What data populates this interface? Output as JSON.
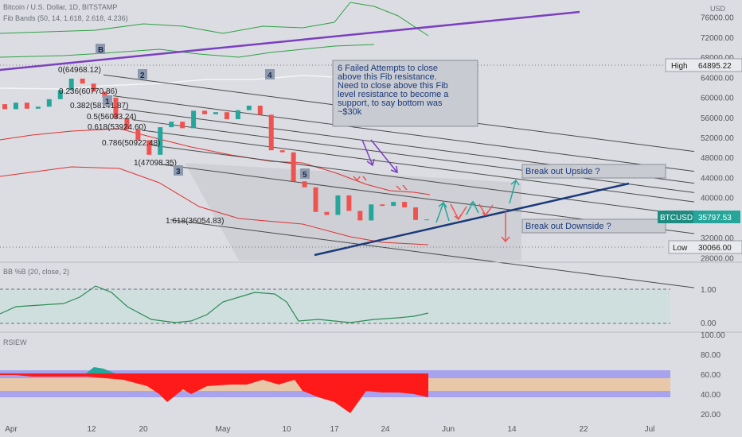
{
  "header": {
    "title": "Bitcoin / U.S. Dollar, 1D, BITSTAMP",
    "indicator": "Fib Bands (50, 14, 1.618, 2.618, 4.236)"
  },
  "currency": "USD",
  "colors": {
    "background": "#dcdde3",
    "up": "#26a69a",
    "down": "#ef5350",
    "trendline": "#7b3fbf",
    "support": "#1a3a7a",
    "fib_line": "#4a4a4a",
    "band_outer": "#2ea043",
    "band_inner": "#e03030",
    "bbpct_line": "#2e8b57",
    "bbpct_fill": "#c8e0dc",
    "callout_fill": "#c9cbd2"
  },
  "price_axis": {
    "ticks": [
      "76000.00",
      "72000.00",
      "68000.00",
      "64000.00",
      "60000.00",
      "56000.00",
      "52000.00",
      "48000.00",
      "44000.00",
      "40000.00",
      "36000.00",
      "32000.00",
      "28000.00"
    ],
    "high_label": "High",
    "high_value": "64895.22",
    "low_label": "Low",
    "low_value": "30066.00",
    "last_symbol": "BTCUSD",
    "last_value": "35797.53"
  },
  "x_axis": {
    "ticks": [
      "Apr",
      "12",
      "20",
      "May",
      "10",
      "17",
      "24",
      "Jun",
      "14",
      "22",
      "Jul"
    ]
  },
  "fib_labels": [
    "0(64968.12)",
    "0.236(60770.86)",
    "0.382(58141.87)",
    "0.5(56033.24)",
    "0.618(53924.60)",
    "0.786(50922.48)",
    "1(47098.35)",
    "1.618(36054.83)"
  ],
  "wave_labels": [
    "B",
    "2",
    "4",
    "1",
    "3",
    "5"
  ],
  "callouts": {
    "resistance": "6 Failed Attempts to close above this Fib resistance.\n\nNeed to close above this Fib level resistance to become a support, to say bottom was ~$30k",
    "upside": "Break out Upside ?",
    "downside": "Break out Downside ?"
  },
  "bbpct": {
    "title": "BB %B (20, close, 2)",
    "ticks": [
      "1.00",
      "0.00"
    ]
  },
  "rsiew": {
    "title": "RSIEW",
    "ticks": [
      "100.00",
      "80.00",
      "60.00",
      "40.00",
      "20.00"
    ]
  },
  "chart_data": {
    "type": "candlestick",
    "title": "Bitcoin / U.S. Dollar, 1D, BITSTAMP",
    "x": [
      "Apr 1",
      "Apr 3",
      "Apr 5",
      "Apr 7",
      "Apr 9",
      "Apr 11",
      "Apr 13",
      "Apr 14",
      "Apr 15",
      "Apr 17",
      "Apr 18",
      "Apr 20",
      "Apr 22",
      "Apr 23",
      "Apr 25",
      "Apr 27",
      "Apr 28",
      "Apr 30",
      "May 1",
      "May 3",
      "May 5",
      "May 7",
      "May 8",
      "May 10",
      "May 12",
      "May 13",
      "May 15",
      "May 17",
      "May 18",
      "May 19",
      "May 20",
      "May 21",
      "May 22",
      "May 24",
      "May 25",
      "May 26",
      "May 27",
      "May 28",
      "May 29"
    ],
    "open": [
      58800,
      57800,
      59100,
      57900,
      58300,
      59800,
      61600,
      63900,
      62900,
      61300,
      60100,
      56000,
      53800,
      51600,
      48700,
      54200,
      55300,
      54000,
      57500,
      56800,
      57200,
      55800,
      57600,
      58500,
      56700,
      49600,
      49200,
      43400,
      42200,
      37300,
      36700,
      40600,
      37500,
      35600,
      38800,
      38500,
      39300,
      38200,
      35700
    ],
    "high": 64895.22,
    "low": 30066.0,
    "close": [
      57800,
      59100,
      57900,
      58300,
      59800,
      61600,
      63900,
      62900,
      61300,
      60100,
      56000,
      53800,
      51600,
      48700,
      54200,
      55300,
      54000,
      57500,
      56800,
      57200,
      55800,
      57600,
      58500,
      56700,
      49600,
      49200,
      43400,
      42200,
      37300,
      36700,
      40600,
      37500,
      35600,
      38800,
      38500,
      39300,
      38200,
      35700,
      35800
    ],
    "ylim": [
      26000,
      78000
    ],
    "last": 35797.53,
    "fib_levels": [
      64968.12,
      60770.86,
      58141.87,
      56033.24,
      53924.6,
      50922.48,
      47098.35,
      36054.83
    ]
  }
}
